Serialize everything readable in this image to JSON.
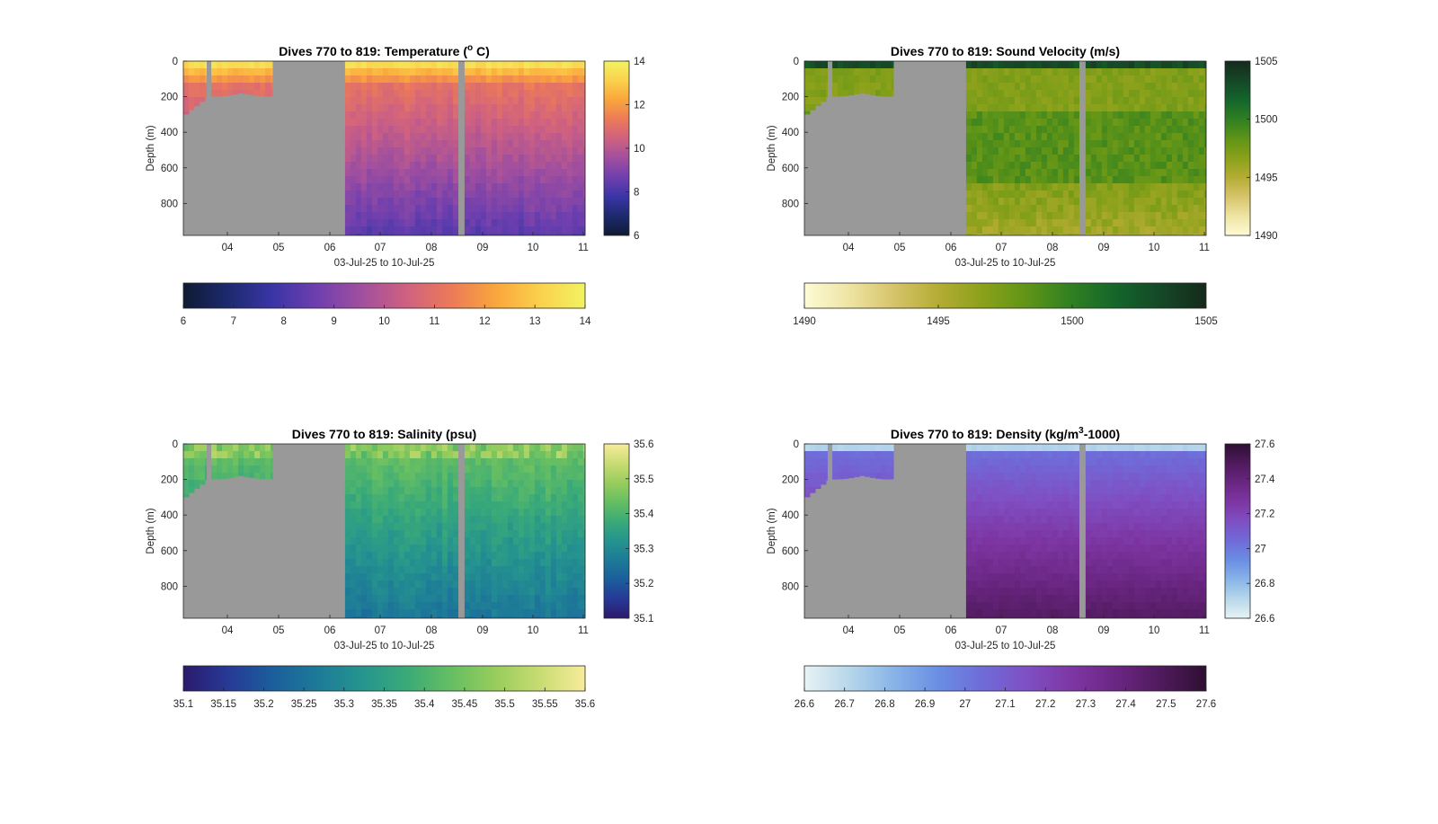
{
  "chart_data": [
    {
      "type": "heatmap",
      "title": "Dives 770 to 819: Temperature (",
      "title_super": "o",
      "title_tail": " C)",
      "xlabel": "03-Jul-25 to 10-Jul-25",
      "ylabel": "Depth (m)",
      "x_ticks": [
        "04",
        "05",
        "06",
        "07",
        "08",
        "09",
        "10",
        "11"
      ],
      "x_range_days": [
        3.1,
        11.0
      ],
      "y_ticks": [
        0,
        200,
        400,
        600,
        800
      ],
      "ylim": [
        0,
        980
      ],
      "y_reversed": true,
      "colorbar_side_ticks": [
        "14",
        "12",
        "10",
        "8",
        "6"
      ],
      "colorbar_bottom_ticks": [
        "6",
        "7",
        "8",
        "9",
        "10",
        "11",
        "12",
        "13",
        "14"
      ],
      "clim": [
        6,
        14
      ],
      "colormap": [
        "#0f1a33",
        "#1d2a6e",
        "#3a35a6",
        "#6f3fae",
        "#a14f9e",
        "#cf6180",
        "#ec7a58",
        "#f9a63c",
        "#fbd14c",
        "#f2f361"
      ],
      "nodata_color": "#999999",
      "profile_field": "temperature"
    },
    {
      "type": "heatmap",
      "title": "Dives 770 to 819: Sound Velocity (m/s)",
      "xlabel": "03-Jul-25 to 10-Jul-25",
      "ylabel": "Depth (m)",
      "x_ticks": [
        "04",
        "05",
        "06",
        "07",
        "08",
        "09",
        "10",
        "11"
      ],
      "x_range_days": [
        3.1,
        11.0
      ],
      "y_ticks": [
        0,
        200,
        400,
        600,
        800
      ],
      "ylim": [
        0,
        980
      ],
      "y_reversed": true,
      "colorbar_side_ticks": [
        "1505",
        "1500",
        "1495",
        "1490"
      ],
      "colorbar_bottom_ticks": [
        "1490",
        "1495",
        "1500",
        "1505"
      ],
      "clim": [
        1490,
        1505
      ],
      "colormap": [
        "#fdfbd6",
        "#eee4a3",
        "#d6c46a",
        "#b4ac34",
        "#8aa11a",
        "#5f9417",
        "#2f7f22",
        "#14652b",
        "#154727",
        "#152a1b"
      ],
      "nodata_color": "#999999",
      "profile_field": "sound_velocity"
    },
    {
      "type": "heatmap",
      "title": "Dives 770 to 819: Salinity (psu)",
      "xlabel": "03-Jul-25 to 10-Jul-25",
      "ylabel": "Depth (m)",
      "x_ticks": [
        "04",
        "05",
        "06",
        "07",
        "08",
        "09",
        "10",
        "11"
      ],
      "x_range_days": [
        3.1,
        11.0
      ],
      "y_ticks": [
        0,
        200,
        400,
        600,
        800
      ],
      "ylim": [
        0,
        980
      ],
      "y_reversed": true,
      "colorbar_side_ticks": [
        "35.6",
        "35.5",
        "35.4",
        "35.3",
        "35.2",
        "35.1"
      ],
      "colorbar_bottom_ticks": [
        "35.1",
        "35.15",
        "35.2",
        "35.25",
        "35.3",
        "35.35",
        "35.4",
        "35.45",
        "35.5",
        "35.55",
        "35.6"
      ],
      "clim": [
        35.1,
        35.6
      ],
      "colormap": [
        "#2a1a6b",
        "#273996",
        "#1b5e9c",
        "#1d7a98",
        "#25948e",
        "#3aaa78",
        "#66be62",
        "#98cd5c",
        "#c8dc72",
        "#f8ec9b"
      ],
      "nodata_color": "#999999",
      "profile_field": "salinity"
    },
    {
      "type": "heatmap",
      "title": "Dives 770 to 819: Density (kg/m",
      "title_super": "3",
      "title_tail": "-1000)",
      "xlabel": "03-Jul-25 to 10-Jul-25",
      "ylabel": "Depth (m)",
      "x_ticks": [
        "04",
        "05",
        "06",
        "07",
        "08",
        "09",
        "10",
        "11"
      ],
      "x_range_days": [
        3.1,
        11.0
      ],
      "y_ticks": [
        0,
        200,
        400,
        600,
        800
      ],
      "ylim": [
        0,
        980
      ],
      "y_reversed": true,
      "colorbar_side_ticks": [
        "27.6",
        "27.4",
        "27.2",
        "27",
        "26.8",
        "26.6"
      ],
      "colorbar_bottom_ticks": [
        "26.6",
        "26.7",
        "26.8",
        "26.9",
        "27",
        "27.1",
        "27.2",
        "27.3",
        "27.4",
        "27.5",
        "27.6"
      ],
      "clim": [
        26.6,
        27.6
      ],
      "colormap": [
        "#e8f3f4",
        "#b7d7ea",
        "#88b4e8",
        "#6a8ee3",
        "#6f6bd8",
        "#7f4fc3",
        "#7d36a3",
        "#6a2682",
        "#4f1a5c",
        "#2e0f32"
      ],
      "nodata_color": "#999999",
      "profile_field": "density"
    }
  ]
}
